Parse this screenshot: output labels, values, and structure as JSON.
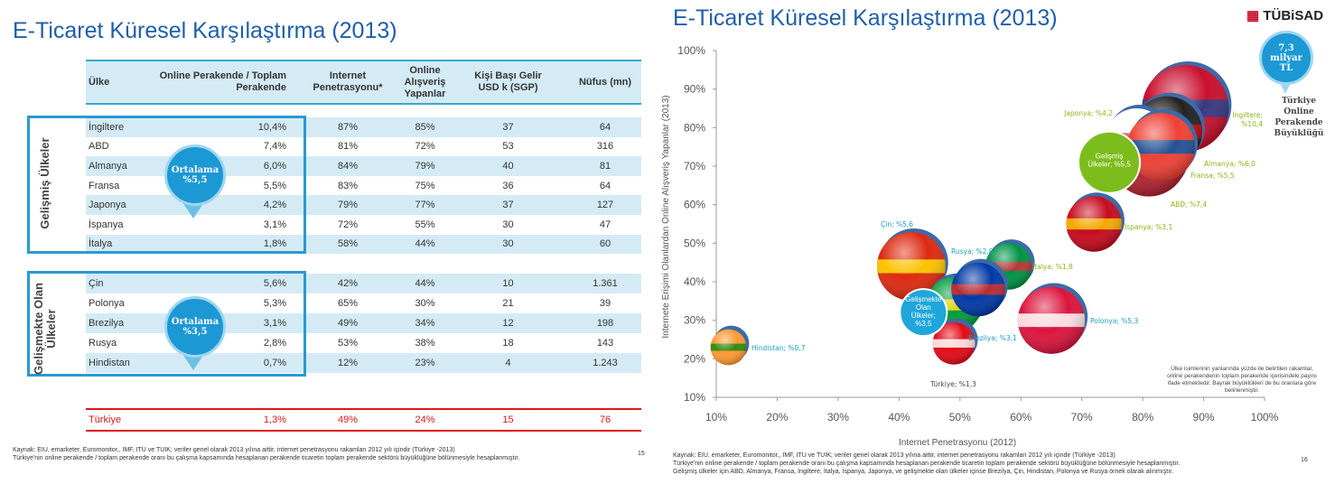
{
  "left_slide": {
    "title": "E-Ticaret Küresel Karşılaştırma (2013)",
    "headers": [
      "Ülke",
      "Online Perakende / Toplam Perakende",
      "Internet Penetrasyonu*",
      "Online Alışveriş Yapanlar",
      "Kişi Başı Gelir USD k (SGP)",
      "Nüfus (mn)"
    ],
    "groups": [
      {
        "label": "Gelişmiş Ülkeler",
        "average_label": "Ortalama",
        "average_value": "%5,5",
        "rows": [
          [
            "İngiltere",
            "10,4%",
            "87%",
            "85%",
            "37",
            "64"
          ],
          [
            "ABD",
            "7,4%",
            "81%",
            "72%",
            "53",
            "316"
          ],
          [
            "Almanya",
            "6,0%",
            "84%",
            "79%",
            "40",
            "81"
          ],
          [
            "Fransa",
            "5,5%",
            "83%",
            "75%",
            "36",
            "64"
          ],
          [
            "Japonya",
            "4,2%",
            "79%",
            "77%",
            "37",
            "127"
          ],
          [
            "İspanya",
            "3,1%",
            "72%",
            "55%",
            "30",
            "47"
          ],
          [
            "İtalya",
            "1,8%",
            "58%",
            "44%",
            "30",
            "60"
          ]
        ]
      },
      {
        "label": "Gelişmekte Olan Ülkeler",
        "average_label": "Ortalama",
        "average_value": "%3,5",
        "rows": [
          [
            "Çin",
            "5,6%",
            "42%",
            "44%",
            "10",
            "1.361"
          ],
          [
            "Polonya",
            "5,3%",
            "65%",
            "30%",
            "21",
            "39"
          ],
          [
            "Brezilya",
            "3,1%",
            "49%",
            "34%",
            "12",
            "198"
          ],
          [
            "Rusya",
            "2,8%",
            "53%",
            "38%",
            "18",
            "143"
          ],
          [
            "Hindistan",
            "0,7%",
            "12%",
            "23%",
            "4",
            "1.243"
          ]
        ]
      }
    ],
    "turkey_row": [
      "Türkiye",
      "1,3%",
      "49%",
      "24%",
      "15",
      "76"
    ],
    "footnote1": "Kaynak: EIU,  emarketer, Euromonitor,, IMF, ITU ve TUIK; veriler genel olarak 2013 yılına aittir, internet penetrasyonu rakamları 2012 yılı içindir (Türkiye -2013)",
    "footnote2": "Türkiye'nin online perakende / toplam perakende oranı bu çalışma kapsamında  hesaplanan perakende ticaretin toplam perakende sektörü büyüklüğüne bölünmesiyle hesaplanmıştır.",
    "page": "15"
  },
  "right_slide": {
    "title": "E-Ticaret Küresel Karşılaştırma (2013)",
    "logo": "TÜBiSAD",
    "badge_lines": [
      "7,3",
      "milyar",
      "TL"
    ],
    "badge_caption": [
      "Türkiye",
      "Online",
      "Perakende",
      "Büyüklüğü"
    ],
    "note": "Ülke isimlerinin  yanlarında yüzde ile belirtilen rakamlar, online  perakendenin toplam perakende içerisindeki payını ifade etmektedir.  Bayrak büyüklükleri de bu oranlara göre belirlenmiştir.",
    "footnote1": "Kaynak: EIU,  emarketer, Euromonitor,, IMF, ITU ve TUIK; veriler genel olarak 2013 yılına aittir, internet penetrasyonu rakamları 2012 yılı içindir (Türkiye -2013)",
    "footnote2": "Türkiye'nin online perakende / toplam perakende oranı bu çalışma kapsamında  hesaplanan perakende ticaretin toplam perakende sektörü büyüklüğüne bölünmesiyle hesaplanmıştır.",
    "footnote3": "Gelişmiş ülkeler için ABD, Almanya, Fransa, İngiltere, İtalya, İspanya, Japonya, ve gelişmekte olan ülkeler içinse Brezilya, Çin, Hindistan, Polonya ve Rusya örnek olarak alınmıştır.",
    "page": "16"
  },
  "chart_data": {
    "type": "scatter",
    "xlabel": "Internet Penetrasyonu (2012)",
    "ylabel": "Internete Erişimi Olanlardan Online Alışveriş Yapanlar (2013)",
    "xlim": [
      10,
      100
    ],
    "ylim": [
      10,
      100
    ],
    "xticks": [
      "10%",
      "20%",
      "30%",
      "40%",
      "50%",
      "60%",
      "70%",
      "80%",
      "90%",
      "100%"
    ],
    "yticks": [
      "10%",
      "20%",
      "30%",
      "40%",
      "50%",
      "60%",
      "70%",
      "80%",
      "90%",
      "100%"
    ],
    "grid": false,
    "points": [
      {
        "label": "İngiltere; %10,4",
        "x": 87,
        "y": 85,
        "size": 10.4,
        "group": "developed",
        "color": "#c8102e",
        "accent": "#1f3f8f"
      },
      {
        "label": "ABD; %7,4",
        "x": 81,
        "y": 72,
        "size": 7.4,
        "group": "developed",
        "color": "#b22234",
        "accent": "#ffffff"
      },
      {
        "label": "Almanya; %6,0",
        "x": 84,
        "y": 79,
        "size": 6.0,
        "group": "developed",
        "color": "#222222",
        "accent": "#dd0000"
      },
      {
        "label": "Japonya; %4,2",
        "x": 79,
        "y": 77,
        "size": 4.2,
        "group": "developed",
        "color": "#ffffff",
        "accent": "#bc002d"
      },
      {
        "label": "Fransa; %5,5",
        "x": 83,
        "y": 75,
        "size": 5.5,
        "group": "developed",
        "color": "#ef4135",
        "accent": "#0055a4"
      },
      {
        "label": "İspanya; %3,1",
        "x": 72,
        "y": 55,
        "size": 3.1,
        "group": "developed",
        "color": "#c60b1e",
        "accent": "#ffc400"
      },
      {
        "label": "İtalya; %1,8",
        "x": 58,
        "y": 44,
        "size": 1.8,
        "group": "developed",
        "color": "#009246",
        "accent": "#ce2b37"
      },
      {
        "label": "Çin; %5,6",
        "x": 42,
        "y": 44,
        "size": 5.6,
        "group": "developing",
        "color": "#de2910",
        "accent": "#ffde00"
      },
      {
        "label": "Polonya; %5,3",
        "x": 65,
        "y": 30,
        "size": 5.3,
        "group": "developing",
        "color": "#dc143c",
        "accent": "#ffffff"
      },
      {
        "label": "Brezilya; %3,1",
        "x": 49,
        "y": 34,
        "size": 3.1,
        "group": "developing",
        "color": "#009c3b",
        "accent": "#ffdf00"
      },
      {
        "label": "Rusya; %2,8",
        "x": 53,
        "y": 38,
        "size": 2.8,
        "group": "developing",
        "color": "#0039a6",
        "accent": "#d52b1e"
      },
      {
        "label": "Hindistan; %0,7",
        "x": 12,
        "y": 23,
        "size": 0.7,
        "group": "developing",
        "color": "#ff9933",
        "accent": "#138808"
      },
      {
        "label": "Türkiye; %1,3",
        "x": 49,
        "y": 24,
        "size": 1.3,
        "group": "turkey",
        "color": "#e30a17",
        "accent": "#ffffff"
      }
    ],
    "averages": [
      {
        "label": "Gelişmiş Ülkeler; %5,5",
        "x": 74.5,
        "y": 71,
        "color": "#7cbc1c"
      },
      {
        "label": "Gelişmekte Olan Ülkeler; %3,5",
        "x": 44,
        "y": 32,
        "color": "#1fa6da"
      }
    ],
    "label_colors": {
      "developed": "#8bb516",
      "developing": "#1a9dc4",
      "turkey": "#444444"
    }
  }
}
